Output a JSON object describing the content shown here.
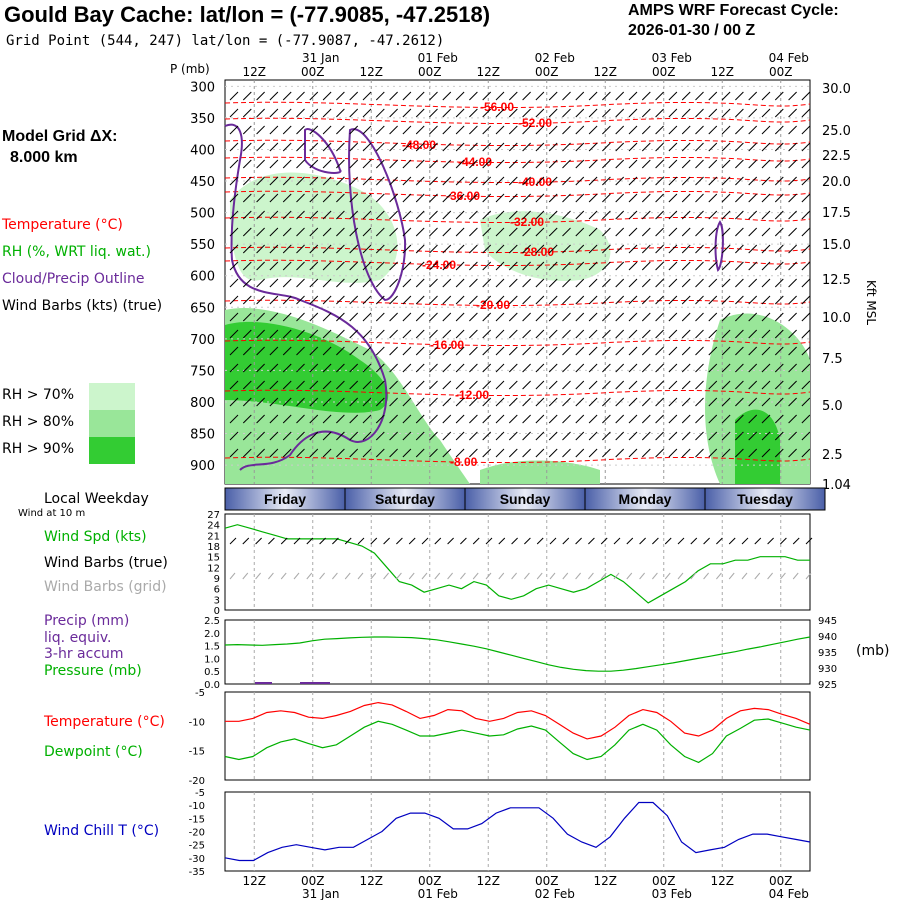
{
  "header": {
    "title": "Gould Bay Cache:  lat/lon = (-77.9085, -47.2518)",
    "subtitle": "Grid Point (544, 247) lat/lon = (-77.9087, -47.2612)",
    "cycle_label": "AMPS WRF Forecast Cycle:",
    "cycle_value": "2026-01-30 / 00  Z"
  },
  "model": {
    "grid_label": "Model Grid ΔX:",
    "grid_value": "8.000 km"
  },
  "legend": {
    "temperature": "Temperature (°C)",
    "rh": "RH (%, WRT liq. wat.)",
    "cloud": "Cloud/Precip Outline",
    "wind": "Wind Barbs (kts) (true)",
    "rh70": "RH > 70%",
    "rh80": "RH > 80%",
    "rh90": "RH > 90%",
    "weekday_title": "Local Weekday",
    "wind10": "Wind at 10 m",
    "wind_spd": "Wind Spd (kts)",
    "wind_barbs_true": "Wind Barbs (true)",
    "wind_barbs_grid": "Wind Barbs (grid)",
    "precip1": "Precip (mm)",
    "precip2": "liq. equiv.",
    "precip3": "3-hr accum",
    "pressure": "Pressure (mb)",
    "pressure_unit": "(mb)",
    "temp2": "Temperature (°C)",
    "dewpoint": "Dewpoint (°C)",
    "windchill": "Wind Chill T (°C)",
    "p_axis_title": "P (mb)",
    "kft_title": "Kft MSL"
  },
  "colors": {
    "temp": "#ff0000",
    "rh": "#00b000",
    "cloud": "#6a2a9a",
    "rh70": "#ccf5cc",
    "rh80": "#99e699",
    "rh90": "#33cc33",
    "windchill": "#0000c0",
    "grid_barbs": "#aaaaaa"
  },
  "chart_data": {
    "type": "line",
    "time_axis": {
      "start": "2026-01-30 06Z",
      "hours": 120,
      "top_hour_labels": [
        "12Z",
        "00Z",
        "12Z",
        "00Z",
        "12Z",
        "00Z",
        "12Z",
        "00Z",
        "12Z",
        "00Z"
      ],
      "top_date_labels": [
        "31 Jan",
        "01 Feb",
        "02 Feb",
        "03 Feb",
        "04 Feb"
      ],
      "bottom_hour_labels": [
        "12Z",
        "00Z",
        "12Z",
        "00Z",
        "12Z",
        "00Z",
        "12Z",
        "00Z",
        "12Z",
        "00Z"
      ],
      "bottom_date_labels": [
        "31 Jan",
        "01 Feb",
        "02 Feb",
        "03 Feb",
        "04 Feb"
      ]
    },
    "weekdays": [
      "Friday",
      "Saturday",
      "Sunday",
      "Monday",
      "Tuesday"
    ],
    "cross_section": {
      "pressure_ticks": [
        300,
        350,
        400,
        450,
        500,
        550,
        600,
        650,
        700,
        750,
        800,
        850,
        900
      ],
      "kft_ticks": [
        "30.0",
        "25.0",
        "22.5",
        "20.0",
        "17.5",
        "15.0",
        "12.5",
        "10.0",
        "7.5",
        "5.0",
        "2.5",
        "1.04"
      ],
      "temperature_labels": [
        "-56.00",
        "-52.00",
        "-48.00",
        "-44.00",
        "-40.00",
        "-36.00",
        "-32.00",
        "-28.00",
        "-24.00",
        "-20.00",
        "-16.00",
        "-12.00",
        "-8.00"
      ]
    },
    "wind_speed": {
      "ylim": [
        0,
        27
      ],
      "yticks": [
        "27",
        "24",
        "21",
        "18",
        "15",
        "12",
        "9",
        "6",
        "3",
        "0"
      ],
      "values": [
        23,
        24,
        23,
        22,
        21,
        20,
        20,
        20,
        20,
        20,
        19,
        18,
        16,
        12,
        8,
        7,
        5,
        6,
        7,
        6,
        8,
        7,
        4,
        3,
        4,
        6,
        7,
        6,
        5,
        6,
        8,
        10,
        8,
        5,
        2,
        4,
        6,
        8,
        11,
        13,
        13,
        14,
        14,
        15,
        15,
        15,
        14,
        14
      ]
    },
    "pressure": {
      "ylim_left": [
        0,
        2.5
      ],
      "yticks_left": [
        "2.5",
        "2.0",
        "1.5",
        "1.0",
        "0.5",
        "0.0"
      ],
      "ylim_right": [
        925,
        945
      ],
      "yticks_right": [
        "945",
        "940",
        "935",
        "930",
        "925"
      ],
      "values": [
        937.2,
        937.3,
        937.2,
        937.1,
        937.3,
        937.5,
        937.8,
        938.5,
        939.0,
        939.2,
        939.4,
        939.6,
        939.7,
        939.7,
        939.6,
        939.5,
        939.2,
        938.8,
        938.2,
        937.5,
        936.8,
        936.0,
        935.0,
        934.0,
        933.0,
        932.0,
        931.0,
        930.2,
        929.6,
        929.2,
        929.0,
        929.0,
        929.3,
        929.8,
        930.4,
        931.0,
        931.6,
        932.3,
        933.0,
        933.7,
        934.4,
        935.1,
        935.9,
        936.6,
        937.4,
        938.2,
        939.0,
        939.7
      ],
      "precip": [
        0,
        0,
        0,
        0,
        0,
        0,
        0,
        0,
        0,
        0,
        0,
        0,
        0,
        0,
        0,
        0,
        0,
        0,
        0,
        0,
        0,
        0,
        0,
        0,
        0,
        0,
        0,
        0,
        0,
        0,
        0,
        0,
        0,
        0,
        0,
        0,
        0,
        0,
        0,
        0,
        0,
        0,
        0,
        0,
        0,
        0,
        0,
        0
      ]
    },
    "temperature": {
      "ylim": [
        -20,
        -5
      ],
      "yticks": [
        "-5",
        "-10",
        "-15",
        "-20"
      ],
      "temp": [
        -10,
        -10,
        -9.5,
        -8.5,
        -8.2,
        -8.5,
        -9.3,
        -9.5,
        -9.0,
        -8.3,
        -7.3,
        -6.8,
        -7.2,
        -8.3,
        -9.5,
        -9.0,
        -8.0,
        -8.2,
        -9.5,
        -10.0,
        -9.5,
        -8.5,
        -8.2,
        -9.0,
        -10.5,
        -12.0,
        -13.0,
        -12.5,
        -11.0,
        -9.0,
        -8.0,
        -8.5,
        -10.0,
        -12.0,
        -12.5,
        -11.5,
        -9.5,
        -8.2,
        -7.8,
        -8.0,
        -8.8,
        -9.5,
        -10.5
      ],
      "dewpoint": [
        -16.0,
        -16.5,
        -16.0,
        -14.5,
        -13.5,
        -13.0,
        -13.8,
        -14.5,
        -14.0,
        -12.5,
        -11.0,
        -10.0,
        -10.5,
        -11.5,
        -12.5,
        -12.5,
        -12.0,
        -11.5,
        -12.0,
        -12.5,
        -12.3,
        -11.3,
        -10.8,
        -11.5,
        -13.5,
        -15.5,
        -16.5,
        -16.0,
        -14.0,
        -11.5,
        -10.5,
        -11.5,
        -14.0,
        -16.0,
        -17.0,
        -15.5,
        -12.5,
        -11.2,
        -9.8,
        -9.6,
        -10.3,
        -11.0,
        -11.5
      ]
    },
    "windchill": {
      "ylim": [
        -35,
        -5
      ],
      "yticks": [
        "-5",
        "-10",
        "-15",
        "-20",
        "-25",
        "-30",
        "-35"
      ],
      "values": [
        -30,
        -31,
        -31,
        -28,
        -26,
        -25,
        -26,
        -27,
        -26,
        -26,
        -23,
        -20,
        -15,
        -13,
        -13,
        -15,
        -19,
        -19,
        -17,
        -13,
        -11,
        -11,
        -11,
        -15,
        -21,
        -24,
        -26,
        -22,
        -15,
        -9,
        -9,
        -14,
        -24,
        -28,
        -27,
        -26,
        -23,
        -21,
        -21,
        -22,
        -23,
        -24
      ]
    }
  }
}
